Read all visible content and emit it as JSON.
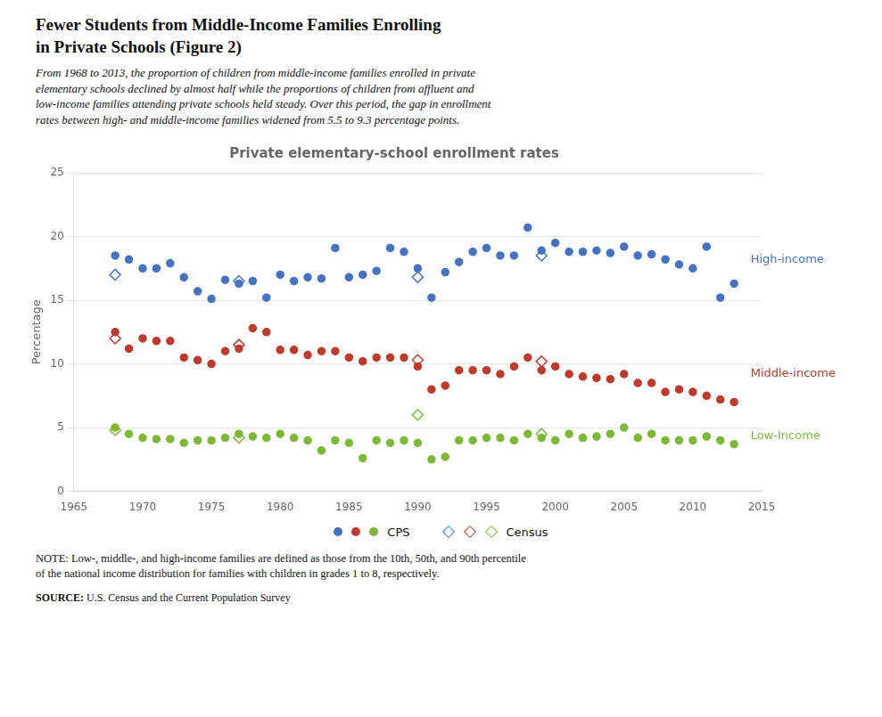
{
  "chart_data": {
    "type": "scatter",
    "heading": [
      "Fewer Students from Middle-Income Families Enrolling",
      "in Private Schools (Figure 2)"
    ],
    "subtitle": [
      "From 1968 to 2013, the proportion of children from middle-income families enrolled in private",
      "elementary schools declined by almost half while the proportions of children from affluent and",
      "low-income families attending private schools held steady. Over this period, the gap in enrollment",
      "rates between high- and middle-income families widened from 5.5 to 9.3 percentage points."
    ],
    "title": "Private elementary-school enrollment rates",
    "ylabel": "Percentage",
    "notes": [
      "NOTE: Low-, middle-, and high-income families are defined as those from the 10th, 50th, and 90th percentile",
      "of the national income distribution for families with children in grades 1 to 8, respectively."
    ],
    "source": [
      "SOURCE:",
      "U.S. Census and the Current Population Survey"
    ],
    "xlim": [
      1965,
      2015
    ],
    "xticks": [
      1965,
      1970,
      1975,
      1980,
      1985,
      1990,
      1995,
      2000,
      2005,
      2010,
      2015
    ],
    "ylim": [
      0,
      25
    ],
    "yticks": [
      0,
      5,
      10,
      15,
      20,
      25
    ],
    "grid": true,
    "legend": "bottom",
    "series": [
      {
        "name": "CPS",
        "color": "#4472c4",
        "marker": "circle",
        "x": [
          1968,
          1969,
          1970,
          1971,
          1972,
          1973,
          1974,
          1975,
          1976,
          1977,
          1978,
          1979,
          1980,
          1981,
          1982,
          1983,
          1984,
          1985,
          1986,
          1987,
          1988,
          1989,
          1990,
          1991,
          1992,
          1993,
          1994,
          1995,
          1996,
          1997,
          1998,
          1999,
          2000,
          2001,
          2002,
          2003,
          2004,
          2005,
          2006,
          2007,
          2008,
          2009,
          2010,
          2011,
          2012,
          2013
        ],
        "values": [
          18.5,
          18.2,
          17.5,
          17.5,
          17.9,
          16.8,
          15.7,
          15.1,
          16.6,
          16.3,
          16.5,
          15.2,
          17.0,
          16.5,
          16.8,
          16.7,
          19.1,
          16.8,
          17.0,
          17.3,
          19.1,
          18.8,
          17.5,
          15.2,
          17.2,
          18.0,
          18.8,
          19.1,
          18.5,
          18.5,
          20.7,
          18.9,
          19.5,
          18.8,
          18.8,
          18.9,
          18.7,
          19.2,
          18.5,
          18.6,
          18.2,
          17.8,
          17.5,
          19.2,
          15.2,
          16.3
        ]
      },
      {
        "name": "CPS",
        "color": "#c0392b",
        "marker": "circle",
        "x": [
          1968,
          1969,
          1970,
          1971,
          1972,
          1973,
          1974,
          1975,
          1976,
          1977,
          1978,
          1979,
          1980,
          1981,
          1982,
          1983,
          1984,
          1985,
          1986,
          1987,
          1988,
          1989,
          1990,
          1991,
          1992,
          1993,
          1994,
          1995,
          1996,
          1997,
          1998,
          1999,
          2000,
          2001,
          2002,
          2003,
          2004,
          2005,
          2006,
          2007,
          2008,
          2009,
          2010,
          2011,
          2012,
          2013
        ],
        "values": [
          12.5,
          11.2,
          12.0,
          11.8,
          11.8,
          10.5,
          10.3,
          10.0,
          11.0,
          11.2,
          12.8,
          12.5,
          11.1,
          11.1,
          10.7,
          11.0,
          11.0,
          10.5,
          10.2,
          10.5,
          10.5,
          10.5,
          9.8,
          8.0,
          8.3,
          9.5,
          9.5,
          9.5,
          9.2,
          9.8,
          10.5,
          9.5,
          9.8,
          9.2,
          9.0,
          8.9,
          8.8,
          9.2,
          8.5,
          8.5,
          7.8,
          8.0,
          7.8,
          7.5,
          7.2,
          7.0
        ]
      },
      {
        "name": "CPS",
        "color": "#7cb934",
        "marker": "circle",
        "x": [
          1968,
          1969,
          1970,
          1971,
          1972,
          1973,
          1974,
          1975,
          1976,
          1977,
          1978,
          1979,
          1980,
          1981,
          1982,
          1983,
          1984,
          1985,
          1986,
          1987,
          1988,
          1989,
          1990,
          1991,
          1992,
          1993,
          1994,
          1995,
          1996,
          1997,
          1998,
          1999,
          2000,
          2001,
          2002,
          2003,
          2004,
          2005,
          2006,
          2007,
          2008,
          2009,
          2010,
          2011,
          2012,
          2013
        ],
        "values": [
          5.0,
          4.5,
          4.2,
          4.1,
          4.1,
          3.8,
          4.0,
          4.0,
          4.2,
          4.5,
          4.3,
          4.2,
          4.5,
          4.2,
          4.0,
          3.2,
          4.0,
          3.8,
          2.6,
          4.0,
          3.8,
          4.0,
          3.8,
          2.5,
          2.7,
          4.0,
          4.0,
          4.2,
          4.2,
          4.0,
          4.5,
          4.2,
          4.0,
          4.5,
          4.2,
          4.3,
          4.5,
          5.0,
          4.2,
          4.5,
          4.0,
          4.0,
          4.0,
          4.3,
          4.0,
          3.7
        ]
      },
      {
        "name": "Census",
        "color": "#4472c4",
        "marker": "diamond_open",
        "x": [
          1968,
          1977,
          1990,
          1999
        ],
        "values": [
          17.0,
          16.5,
          16.8,
          18.5
        ]
      },
      {
        "name": "Census",
        "color": "#c0392b",
        "marker": "diamond_open",
        "x": [
          1968,
          1977,
          1990,
          1999
        ],
        "values": [
          12.0,
          11.5,
          10.3,
          10.2
        ]
      },
      {
        "name": "Census",
        "color": "#7cb934",
        "marker": "diamond_open",
        "x": [
          1968,
          1977,
          1990,
          1999
        ],
        "values": [
          4.8,
          4.2,
          6.0,
          4.5
        ]
      }
    ],
    "annotations": [
      {
        "text": "High-income",
        "x": 2014.2,
        "y": 18.2,
        "color": "#4472c4"
      },
      {
        "text": "Middle-income",
        "x": 2014.2,
        "y": 9.2,
        "color": "#c0392b"
      },
      {
        "text": "Low-Income",
        "x": 2014.2,
        "y": 4.3,
        "color": "#7cb934"
      }
    ]
  }
}
